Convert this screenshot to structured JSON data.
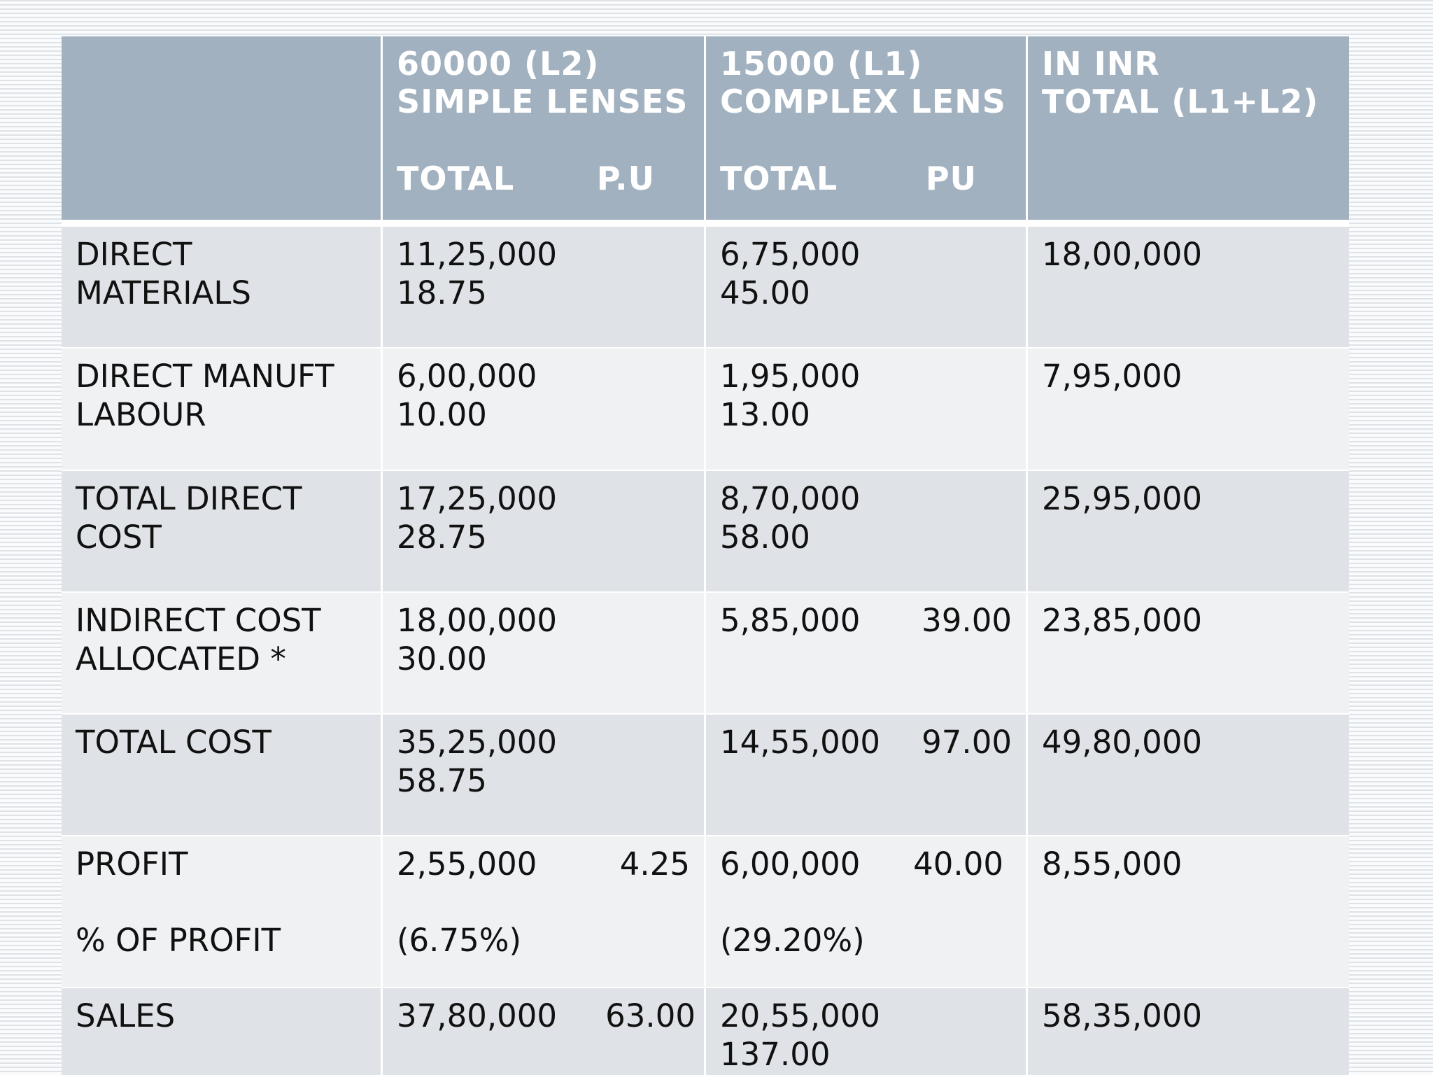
{
  "header": {
    "blank": "",
    "col_l2": {
      "line1": "60000   (L2)",
      "line2": "SIMPLE LENSES",
      "sub_total": "TOTAL",
      "sub_pu": "P.U"
    },
    "col_l1": {
      "line1": "15000    (L1)",
      "line2": "COMPLEX LENS",
      "sub_total": "TOTAL",
      "sub_pu": "PU"
    },
    "col_total": {
      "line1": "IN INR",
      "line2": "TOTAL (L1+L2)"
    }
  },
  "rows": {
    "direct_materials": {
      "label1": "DIRECT",
      "label2": "MATERIALS",
      "l2_total": "11,25,000",
      "l2_pu": "18.75",
      "l1_total": "6,75,000",
      "l1_pu": "45.00",
      "total": "18,00,000"
    },
    "direct_labour": {
      "label1": "DIRECT MANUFT",
      "label2": "LABOUR",
      "l2_total": "6,00,000",
      "l2_pu": "10.00",
      "l1_total": "1,95,000",
      "l1_pu": "13.00",
      "total": "7,95,000"
    },
    "total_direct_cost": {
      "label1": "TOTAL DIRECT",
      "label2": "COST",
      "l2_total": "17,25,000",
      "l2_pu": "28.75",
      "l1_total": "8,70,000",
      "l1_pu": "58.00",
      "total": "25,95,000"
    },
    "indirect_cost": {
      "label1": "INDIRECT COST",
      "label2": "ALLOCATED *",
      "l2_total": "18,00,000",
      "l2_pu": "30.00",
      "l1_total": "5,85,000",
      "l1_pu": "39.00",
      "total": "23,85,000"
    },
    "total_cost": {
      "label1": "TOTAL COST",
      "l2_total": "35,25,000",
      "l2_pu": "58.75",
      "l1_total": "14,55,000",
      "l1_pu": "97.00",
      "total": "49,80,000"
    },
    "profit": {
      "label1": "PROFIT",
      "label2": "% OF PROFIT",
      "l2_total": "2,55,000",
      "l2_pu": "4.25",
      "l2_pct": "(6.75%)",
      "l1_total": "6,00,000",
      "l1_pu": "40.00",
      "l1_pct": "(29.20%)",
      "total": "8,55,000"
    },
    "sales": {
      "label1": "SALES",
      "l2_total": "37,80,000",
      "l2_pu": "63.00",
      "l1_total": "20,55,000",
      "l1_pu": "137.00",
      "total": "58,35,000"
    }
  }
}
